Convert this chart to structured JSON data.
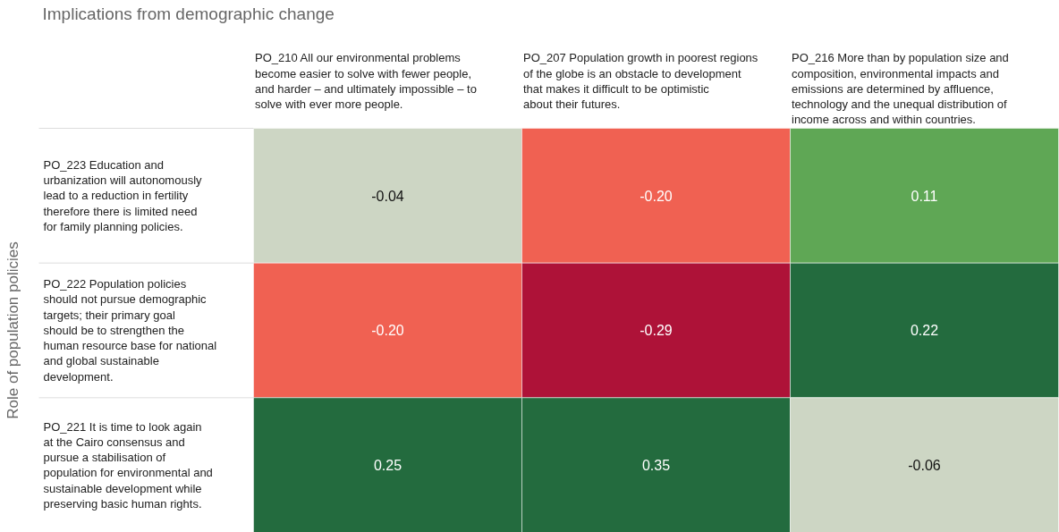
{
  "chart_data": {
    "type": "heatmap",
    "xlabel": "Implications from demographic change",
    "ylabel": "Role of population policies",
    "categories": [
      "PO_210 All our environmental problems become easier to solve with fewer people, and harder – and ultimately impossible – to solve with ever more people.",
      "PO_207 Population growth in poorest regions of the globe is an obstacle to development that makes it difficult to be optimistic about their futures.",
      "PO_216 More than by population size and composition, environmental impacts and emissions are determined by affluence, technology and the unequal distribution of income across and within countries."
    ],
    "y_categories": [
      "PO_223 Education and urbanization will autonomously lead to a reduction in fertility therefore there is limited need for family planning policies.",
      "PO_222 Population policies should not pursue demographic targets; their primary goal should be to strengthen the human resource base for national and global sustainable development.",
      "PO_221 It is time to look again at the Cairo consensus and pursue a stabilisation of population for environmental and sustainable development while preserving basic human rights."
    ],
    "cells": [
      [
        -0.04,
        -0.2,
        0.11
      ],
      [
        -0.2,
        -0.29,
        0.22
      ],
      [
        0.25,
        0.35,
        -0.06
      ]
    ],
    "cell_labels": [
      [
        "-0.04",
        "-0.20",
        "0.11"
      ],
      [
        "-0.20",
        "-0.29",
        "0.22"
      ],
      [
        "0.25",
        "0.35",
        "-0.06"
      ]
    ],
    "data_labels": true
  }
}
